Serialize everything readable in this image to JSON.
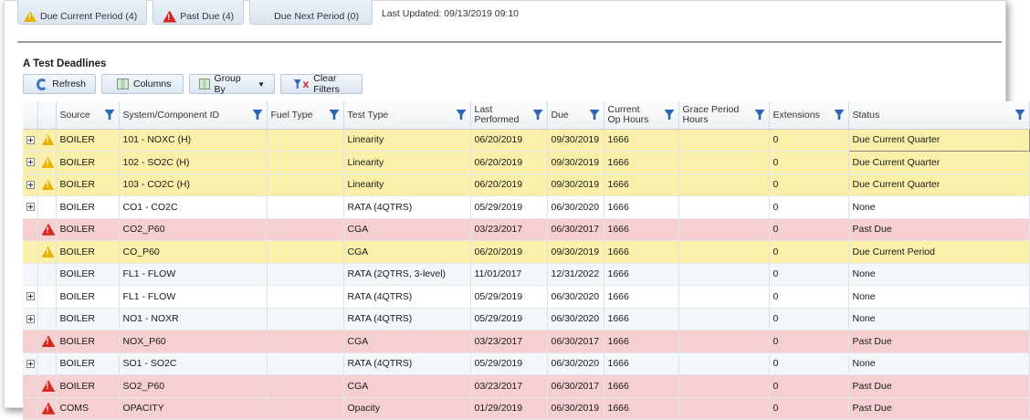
{
  "top_filters": {
    "due_current": "Due Current Period (4)",
    "past_due": "Past Due (4)",
    "due_next": "Due Next Period (0)",
    "last_updated": "Last Updated: 09/13/2019 09:10"
  },
  "section_title": "A Test Deadlines",
  "toolbar": {
    "refresh": "Refresh",
    "columns": "Columns",
    "group_by": "Group By",
    "clear_filters": "Clear Filters"
  },
  "columns": [
    "Source",
    "System/Component ID",
    "Fuel Type",
    "Test Type",
    "Last Performed",
    "Due",
    "Current Op Hours",
    "Grace Period Hours",
    "Extensions",
    "Status"
  ],
  "rows": [
    {
      "style": "yellow",
      "expander": true,
      "icon": "warning-yellow",
      "source": "BOILER",
      "system": "101 - NOXC (H)",
      "fuel": "",
      "test": "Linearity",
      "last": "06/20/2019",
      "due": "09/30/2019",
      "hours": "1666",
      "grace": "",
      "ext": "0",
      "status": "Due Current Quarter"
    },
    {
      "style": "yellow",
      "expander": true,
      "icon": "warning-yellow",
      "source": "BOILER",
      "system": "102 - SO2C (H)",
      "fuel": "",
      "test": "Linearity",
      "last": "06/20/2019",
      "due": "09/30/2019",
      "hours": "1666",
      "grace": "",
      "ext": "0",
      "status": "Due Current Quarter"
    },
    {
      "style": "yellow",
      "expander": true,
      "icon": "warning-yellow",
      "source": "BOILER",
      "system": "103 - CO2C (H)",
      "fuel": "",
      "test": "Linearity",
      "last": "06/20/2019",
      "due": "09/30/2019",
      "hours": "1666",
      "grace": "",
      "ext": "0",
      "status": "Due Current Quarter"
    },
    {
      "style": "white",
      "expander": true,
      "icon": "",
      "source": "BOILER",
      "system": "CO1 - CO2C",
      "fuel": "",
      "test": "RATA (4QTRS)",
      "last": "05/29/2019",
      "due": "06/30/2020",
      "hours": "1666",
      "grace": "",
      "ext": "0",
      "status": "None"
    },
    {
      "style": "red",
      "expander": false,
      "icon": "warning-red",
      "source": "BOILER",
      "system": "CO2_P60",
      "fuel": "",
      "test": "CGA",
      "last": "03/23/2017",
      "due": "06/30/2017",
      "hours": "1666",
      "grace": "",
      "ext": "0",
      "status": "Past Due"
    },
    {
      "style": "yellow",
      "expander": false,
      "icon": "warning-yellow",
      "source": "BOILER",
      "system": "CO_P60",
      "fuel": "",
      "test": "CGA",
      "last": "06/20/2019",
      "due": "09/30/2019",
      "hours": "1666",
      "grace": "",
      "ext": "0",
      "status": "Due Current Period"
    },
    {
      "style": "alt",
      "expander": false,
      "icon": "",
      "source": "BOILER",
      "system": "FL1 - FLOW",
      "fuel": "",
      "test": "RATA (2QTRS, 3-level)",
      "last": "11/01/2017",
      "due": "12/31/2022",
      "hours": "1666",
      "grace": "",
      "ext": "0",
      "status": "None"
    },
    {
      "style": "white",
      "expander": true,
      "icon": "",
      "source": "BOILER",
      "system": "FL1 - FLOW",
      "fuel": "",
      "test": "RATA (4QTRS)",
      "last": "05/29/2019",
      "due": "06/30/2020",
      "hours": "1666",
      "grace": "",
      "ext": "0",
      "status": "None"
    },
    {
      "style": "alt",
      "expander": true,
      "icon": "",
      "source": "BOILER",
      "system": "NO1 - NOXR",
      "fuel": "",
      "test": "RATA (4QTRS)",
      "last": "05/29/2019",
      "due": "06/30/2020",
      "hours": "1666",
      "grace": "",
      "ext": "0",
      "status": "None"
    },
    {
      "style": "red",
      "expander": false,
      "icon": "warning-red",
      "source": "BOILER",
      "system": "NOX_P60",
      "fuel": "",
      "test": "CGA",
      "last": "03/23/2017",
      "due": "06/30/2017",
      "hours": "1666",
      "grace": "",
      "ext": "0",
      "status": "Past Due"
    },
    {
      "style": "alt",
      "expander": true,
      "icon": "",
      "source": "BOILER",
      "system": "SO1 - SO2C",
      "fuel": "",
      "test": "RATA (4QTRS)",
      "last": "05/29/2019",
      "due": "06/30/2020",
      "hours": "1666",
      "grace": "",
      "ext": "0",
      "status": "None"
    },
    {
      "style": "red",
      "expander": false,
      "icon": "warning-red",
      "source": "BOILER",
      "system": "SO2_P60",
      "fuel": "",
      "test": "CGA",
      "last": "03/23/2017",
      "due": "06/30/2017",
      "hours": "1666",
      "grace": "",
      "ext": "0",
      "status": "Past Due"
    },
    {
      "style": "red",
      "expander": false,
      "icon": "warning-red",
      "source": "COMS",
      "system": "OPACITY",
      "fuel": "",
      "test": "Opacity",
      "last": "01/29/2019",
      "due": "06/30/2019",
      "hours": "1666",
      "grace": "",
      "ext": "0",
      "status": "Past Due"
    }
  ]
}
